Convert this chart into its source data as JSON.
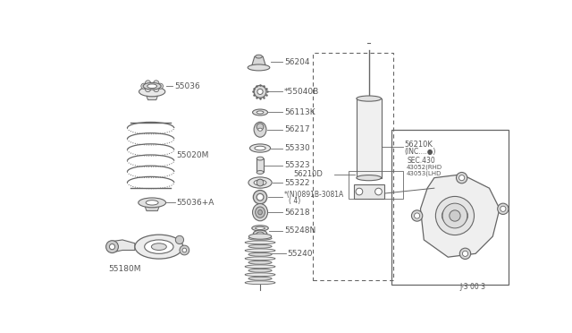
{
  "bg_color": "#ffffff",
  "line_color": "#666666",
  "text_color": "#555555",
  "diagram_ref": "J-3 00 3",
  "figsize": [
    6.4,
    3.72
  ],
  "dpi": 100,
  "parts_center_labels": [
    "56204",
    "*55040B",
    "56113K",
    "56217",
    "55330",
    "55323",
    "55322",
    "*(N)0891B-3081A",
    "56218",
    "55248N",
    "55240"
  ],
  "parts_left_labels": [
    "55036",
    "55020M",
    "55036+A",
    "55180M"
  ]
}
